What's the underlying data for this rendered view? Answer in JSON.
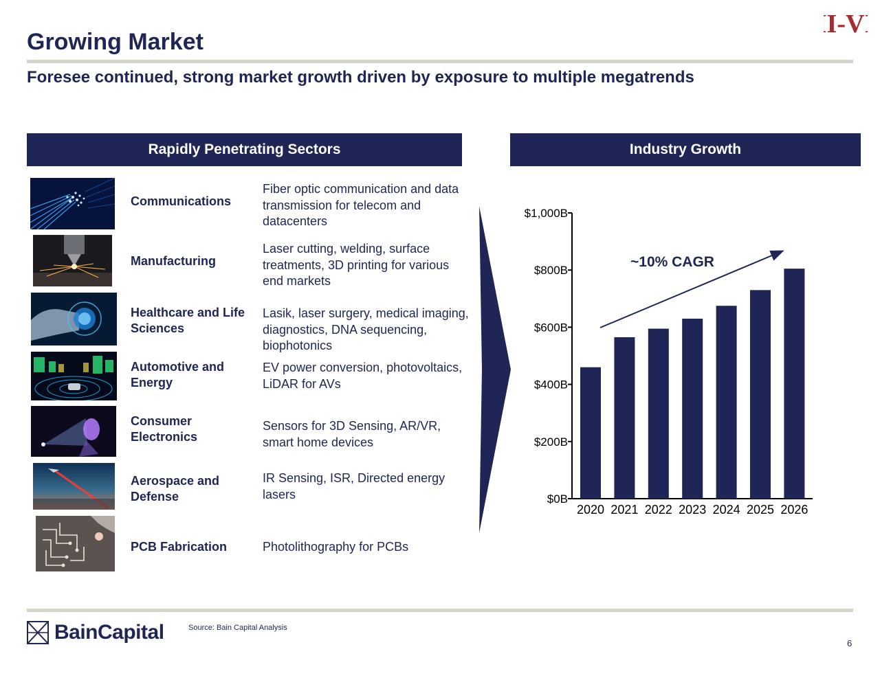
{
  "header": {
    "title": "Growing Market",
    "subtitle": "Foresee continued, strong market growth driven by exposure to multiple megatrends",
    "company_logo_text": "II-VI"
  },
  "sectors_panel": {
    "title": "Rapidly Penetrating Sectors",
    "items": [
      {
        "name": "Communications",
        "description": "Fiber optic communication and data transmission for telecom and datacenters",
        "image_icon": "fiber-optic-image"
      },
      {
        "name": "Manufacturing",
        "description": "Laser cutting, welding, surface treatments, 3D printing for various end markets",
        "image_icon": "laser-cutting-image"
      },
      {
        "name": "Healthcare and Life Sciences",
        "description": "Lasik, laser surgery, medical imaging, diagnostics, DNA sequencing, biophotonics",
        "image_icon": "brain-scan-image"
      },
      {
        "name": "Automotive and Energy",
        "description": "EV power conversion, photovoltaics, LiDAR for AVs",
        "image_icon": "lidar-car-image"
      },
      {
        "name": "Consumer Electronics",
        "description": "Sensors for 3D Sensing, AR/VR, smart home devices",
        "image_icon": "face-sensing-image"
      },
      {
        "name": "Aerospace and Defense",
        "description": "IR Sensing, ISR, Directed energy lasers",
        "image_icon": "laser-beam-image"
      },
      {
        "name": "PCB Fabrication",
        "description": "Photolithography for PCBs",
        "image_icon": "circuit-board-image"
      }
    ]
  },
  "growth_panel": {
    "title": "Industry Growth"
  },
  "chart_data": {
    "type": "bar",
    "title": "",
    "xlabel": "",
    "ylabel": "",
    "categories": [
      "2020",
      "2021",
      "2022",
      "2023",
      "2024",
      "2025",
      "2026"
    ],
    "values": [
      460,
      565,
      595,
      630,
      675,
      730,
      805
    ],
    "ylim": [
      0,
      1000
    ],
    "y_ticks": [
      0,
      200,
      400,
      600,
      800,
      1000
    ],
    "y_tick_labels": [
      "$0B",
      "$200B",
      "$400B",
      "$600B",
      "$800B",
      "$1,000B"
    ],
    "annotation": "~10% CAGR",
    "bar_color": "#1f2554",
    "grid": false,
    "legend": "none"
  },
  "footer": {
    "brand": "BainCapital",
    "source": "Source: Bain Capital Analysis",
    "page_number": "6"
  }
}
